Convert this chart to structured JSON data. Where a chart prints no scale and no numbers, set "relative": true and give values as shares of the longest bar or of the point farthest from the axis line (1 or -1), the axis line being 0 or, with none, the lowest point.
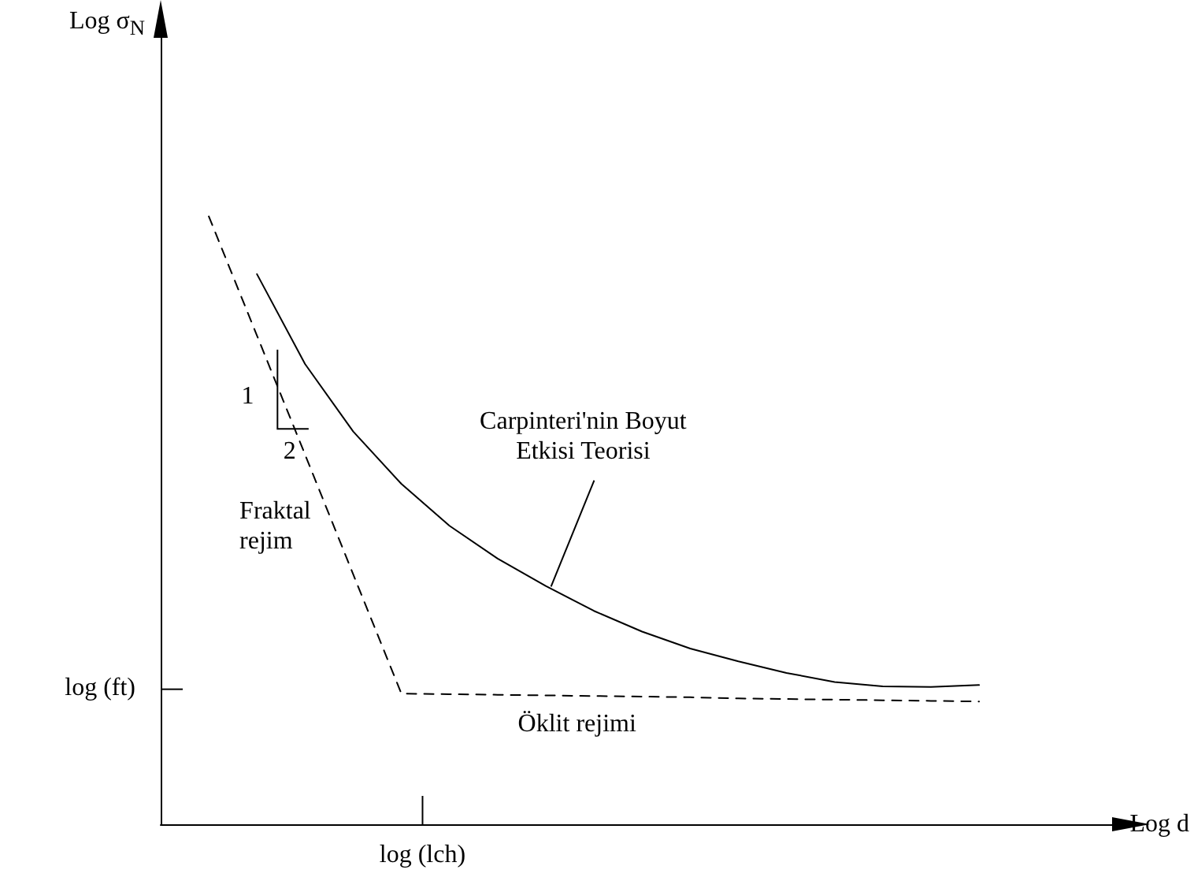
{
  "chart_data": {
    "type": "line",
    "relative": true,
    "xlabel": "Log d",
    "categories": [
      null,
      null,
      null,
      null,
      null,
      null,
      null,
      null,
      null,
      null,
      null,
      null,
      null,
      null,
      null,
      null,
      null,
      null,
      null,
      null,
      null
    ],
    "grid": false,
    "marker": "none",
    "series": [
      {
        "color": "#000000",
        "line_style": "solid",
        "values": [
          null,
          null,
          0.905,
          0.757,
          0.646,
          0.56,
          0.491,
          0.437,
          0.392,
          0.351,
          0.317,
          0.289,
          0.268,
          0.249,
          0.234,
          0.227,
          0.226,
          0.229,
          null,
          null,
          null
        ]
      },
      {
        "color": "#000000",
        "line_style": "dashed",
        "values": [
          null,
          1,
          0.804,
          0.608,
          0.411,
          0.215,
          0.214,
          0.213,
          0.212,
          0.211,
          0.21,
          0.209,
          0.207,
          0.206,
          0.205,
          0.204,
          0.203,
          0.202,
          null,
          null,
          null
        ]
      }
    ],
    "annotations": [
      "1",
      "2",
      "Fraktal rejim",
      "Öklit rejimi",
      "Carpinteri'nin Boyut Etkisi Teorisi",
      "log (ft)",
      "log (lch)",
      "Log σ$_{N}$"
    ]
  }
}
